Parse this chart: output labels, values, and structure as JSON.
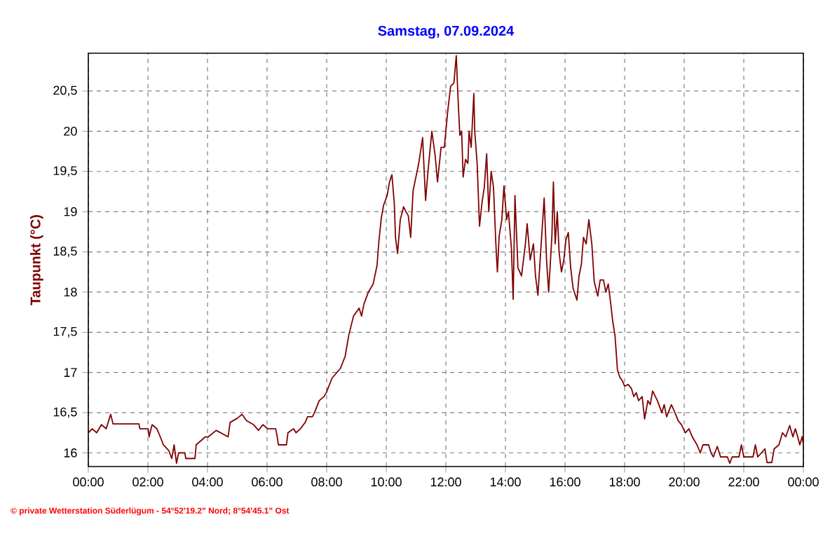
{
  "chart_data": {
    "type": "line",
    "title": "Samstag, 07.09.2024",
    "ylabel": "Taupunkt  (°C)",
    "annotations": [
      "© private Wetterstation Süderlügum - 54°52'19.2\" Nord; 8°54'45.1\" Ost"
    ],
    "xlim": [
      0,
      24
    ],
    "xticks": [
      {
        "value": 0,
        "label": "00:00"
      },
      {
        "value": 2,
        "label": "02:00"
      },
      {
        "value": 4,
        "label": "04:00"
      },
      {
        "value": 6,
        "label": "06:00"
      },
      {
        "value": 8,
        "label": "08:00"
      },
      {
        "value": 10,
        "label": "10:00"
      },
      {
        "value": 12,
        "label": "12:00"
      },
      {
        "value": 14,
        "label": "14:00"
      },
      {
        "value": 16,
        "label": "16:00"
      },
      {
        "value": 18,
        "label": "18:00"
      },
      {
        "value": 20,
        "label": "20:00"
      },
      {
        "value": 22,
        "label": "22:00"
      },
      {
        "value": 24,
        "label": "00:00"
      }
    ],
    "ylim": [
      15.83,
      20.97
    ],
    "yticks": [
      16,
      {
        "value": 16.5,
        "label": "16,5"
      },
      17,
      {
        "value": 17.5,
        "label": "17,5"
      },
      18,
      {
        "value": 18.5,
        "label": "18,5"
      },
      19,
      {
        "value": 19.5,
        "label": "19,5"
      },
      20,
      {
        "value": 20.5,
        "label": "20,5"
      }
    ],
    "grid": true,
    "marker": "none",
    "line_style": "solid",
    "series": [
      {
        "color": "#800000",
        "x": [
          0.0,
          0.13,
          0.28,
          0.44,
          0.6,
          0.75,
          0.83,
          1.7,
          1.73,
          2.01,
          2.04,
          2.14,
          2.3,
          2.36,
          2.52,
          2.7,
          2.8,
          2.88,
          2.96,
          3.03,
          3.24,
          3.27,
          3.58,
          3.62,
          3.93,
          4.03,
          4.29,
          4.69,
          4.76,
          5.0,
          5.16,
          5.31,
          5.55,
          5.71,
          5.86,
          6.02,
          6.29,
          6.34,
          6.38,
          6.65,
          6.7,
          6.89,
          6.97,
          7.12,
          7.28,
          7.36,
          7.52,
          7.59,
          7.75,
          7.91,
          7.99,
          8.18,
          8.46,
          8.62,
          8.74,
          8.9,
          9.09,
          9.17,
          9.25,
          9.4,
          9.56,
          9.69,
          9.75,
          9.83,
          9.91,
          10.03,
          10.11,
          10.19,
          10.27,
          10.31,
          10.38,
          10.47,
          10.58,
          10.66,
          10.74,
          10.82,
          10.9,
          11.09,
          11.22,
          11.32,
          11.4,
          11.53,
          11.64,
          11.72,
          11.84,
          11.95,
          12.06,
          12.16,
          12.27,
          12.35,
          12.41,
          12.47,
          12.53,
          12.58,
          12.66,
          12.74,
          12.78,
          12.85,
          12.94,
          12.97,
          13.05,
          13.13,
          13.21,
          13.29,
          13.37,
          13.44,
          13.52,
          13.6,
          13.68,
          13.73,
          13.79,
          13.88,
          13.95,
          14.04,
          14.1,
          14.2,
          14.26,
          14.32,
          14.42,
          14.54,
          14.67,
          14.73,
          14.83,
          14.94,
          15.01,
          15.09,
          15.2,
          15.3,
          15.38,
          15.45,
          15.56,
          15.61,
          15.67,
          15.74,
          15.8,
          15.88,
          15.96,
          16.03,
          16.11,
          16.19,
          16.27,
          16.4,
          16.47,
          16.55,
          16.62,
          16.71,
          16.8,
          16.9,
          16.98,
          17.1,
          17.18,
          17.29,
          17.37,
          17.45,
          17.53,
          17.6,
          17.68,
          17.76,
          17.84,
          17.92,
          18.0,
          18.12,
          18.23,
          18.31,
          18.39,
          18.47,
          18.59,
          18.67,
          18.78,
          18.86,
          18.94,
          19.1,
          19.25,
          19.33,
          19.41,
          19.57,
          19.69,
          19.8,
          19.91,
          20.04,
          20.16,
          20.27,
          20.43,
          20.54,
          20.63,
          20.82,
          20.9,
          20.98,
          21.11,
          21.22,
          21.45,
          21.53,
          21.61,
          21.84,
          21.92,
          22.0,
          22.31,
          22.39,
          22.47,
          22.71,
          22.78,
          22.94,
          23.02,
          23.18,
          23.3,
          23.41,
          23.54,
          23.65,
          23.73,
          23.81,
          23.88,
          23.96,
          24.0
        ],
        "values": [
          16.25,
          16.3,
          16.25,
          16.35,
          16.3,
          16.48,
          16.36,
          16.36,
          16.3,
          16.3,
          16.2,
          16.35,
          16.3,
          16.25,
          16.1,
          16.03,
          15.93,
          16.1,
          15.87,
          16.0,
          16.0,
          15.93,
          15.93,
          16.1,
          16.2,
          16.2,
          16.28,
          16.2,
          16.38,
          16.43,
          16.48,
          16.4,
          16.35,
          16.28,
          16.35,
          16.3,
          16.3,
          16.2,
          16.1,
          16.1,
          16.25,
          16.3,
          16.25,
          16.3,
          16.38,
          16.45,
          16.45,
          16.5,
          16.65,
          16.7,
          16.75,
          16.93,
          17.05,
          17.2,
          17.46,
          17.7,
          17.8,
          17.7,
          17.85,
          18.0,
          18.1,
          18.33,
          18.62,
          18.91,
          19.08,
          19.2,
          19.37,
          19.46,
          19.1,
          18.68,
          18.48,
          18.9,
          19.06,
          19.0,
          18.95,
          18.68,
          19.26,
          19.6,
          19.92,
          19.14,
          19.5,
          20.0,
          19.7,
          19.37,
          19.8,
          19.8,
          20.24,
          20.56,
          20.6,
          20.94,
          20.4,
          19.95,
          20.0,
          19.43,
          19.65,
          19.6,
          20.0,
          19.8,
          20.47,
          20.0,
          19.6,
          18.82,
          19.1,
          19.3,
          19.72,
          19.0,
          19.5,
          19.3,
          18.59,
          18.25,
          18.7,
          18.9,
          19.32,
          18.9,
          19.0,
          18.55,
          17.91,
          19.2,
          18.3,
          18.2,
          18.6,
          18.85,
          18.4,
          18.6,
          18.2,
          17.96,
          18.6,
          19.17,
          18.4,
          18.0,
          18.7,
          19.37,
          18.6,
          19.0,
          18.5,
          18.25,
          18.4,
          18.65,
          18.74,
          18.3,
          18.05,
          17.9,
          18.2,
          18.35,
          18.68,
          18.6,
          18.9,
          18.6,
          18.13,
          17.95,
          18.15,
          18.15,
          18.0,
          18.1,
          17.87,
          17.64,
          17.45,
          17.03,
          16.94,
          16.9,
          16.83,
          16.85,
          16.8,
          16.7,
          16.75,
          16.65,
          16.7,
          16.42,
          16.65,
          16.6,
          16.77,
          16.65,
          16.5,
          16.6,
          16.45,
          16.6,
          16.5,
          16.4,
          16.35,
          16.25,
          16.3,
          16.2,
          16.1,
          16.0,
          16.1,
          16.1,
          16.0,
          15.95,
          16.08,
          15.95,
          15.95,
          15.87,
          15.95,
          15.95,
          16.1,
          15.95,
          15.95,
          16.1,
          15.95,
          16.05,
          15.88,
          15.88,
          16.05,
          16.1,
          16.25,
          16.2,
          16.34,
          16.2,
          16.3,
          16.2,
          16.1,
          16.2,
          16.1
        ]
      }
    ]
  }
}
